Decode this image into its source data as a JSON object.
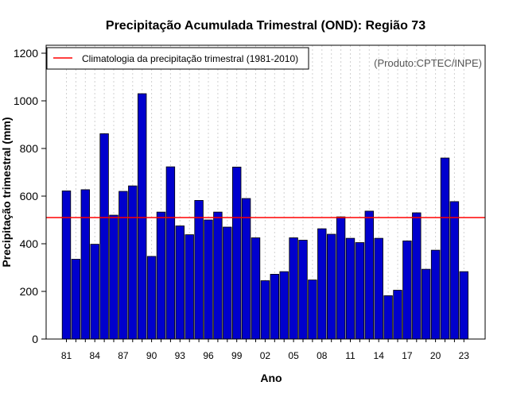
{
  "chart_data": {
    "type": "bar",
    "title": "Precipitação Acumulada Trimestral (OND): Região 73",
    "xlabel": "Ano",
    "ylabel": "Precipitação trimestral (mm)",
    "ylim": [
      0,
      1240
    ],
    "yticks": [
      0,
      200,
      400,
      600,
      800,
      1000,
      1200
    ],
    "categories": [
      "81",
      "82",
      "83",
      "84",
      "85",
      "86",
      "87",
      "88",
      "89",
      "90",
      "91",
      "92",
      "93",
      "94",
      "95",
      "96",
      "97",
      "98",
      "99",
      "00",
      "01",
      "02",
      "03",
      "04",
      "05",
      "06",
      "07",
      "08",
      "09",
      "10",
      "11",
      "12",
      "13",
      "14",
      "15",
      "16",
      "17",
      "18",
      "19",
      "20",
      "21",
      "22",
      "23"
    ],
    "xtick_labels": [
      "81",
      "84",
      "87",
      "90",
      "93",
      "96",
      "99",
      "02",
      "05",
      "08",
      "11",
      "14",
      "17",
      "20",
      "23"
    ],
    "values": [
      622,
      335,
      627,
      398,
      862,
      520,
      620,
      643,
      1030,
      347,
      533,
      723,
      475,
      438,
      582,
      500,
      533,
      470,
      722,
      590,
      425,
      245,
      272,
      283,
      425,
      415,
      248,
      463,
      440,
      513,
      423,
      405,
      537,
      423,
      182,
      205,
      412,
      530,
      293,
      373,
      760,
      577,
      283
    ],
    "reference_line": {
      "value": 510,
      "color": "#ff0000",
      "label": "Climatologia da precipitação trimestral (1981-2010)"
    },
    "bar_color": "#0000cd",
    "grid_color": "#d0d0d0",
    "source": "(Produto:CPTEC/INPE)",
    "legend_position": "top-left"
  }
}
